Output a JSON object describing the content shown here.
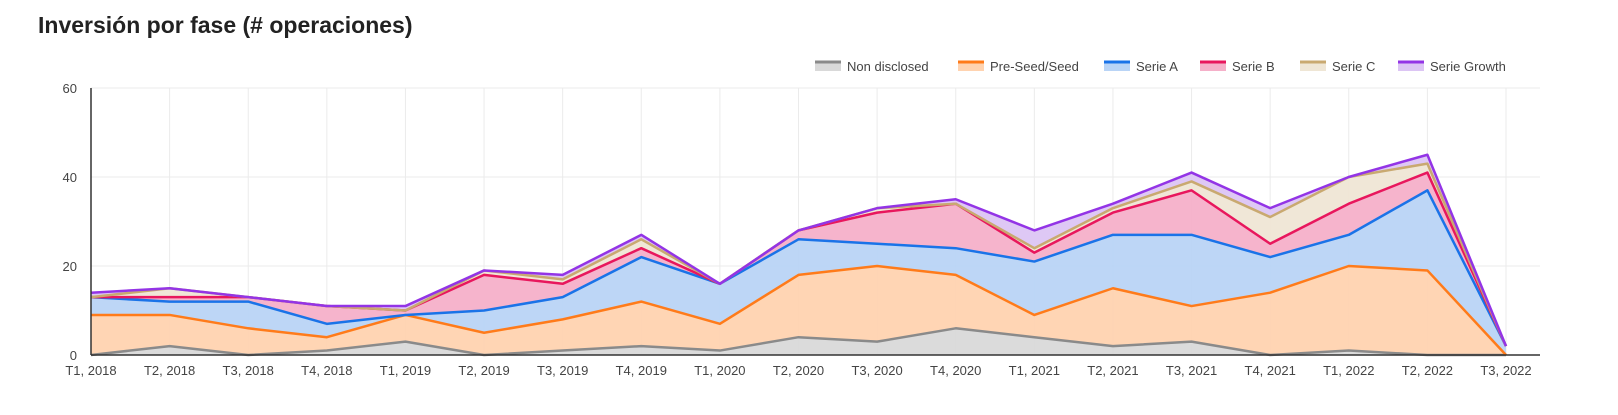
{
  "chart_data": {
    "type": "area",
    "stacked": true,
    "title": "Inversión por fase (# operaciones)",
    "xlabel": "",
    "ylabel": "",
    "ylim": [
      0,
      60
    ],
    "yticks": [
      "0",
      "20",
      "40",
      "60"
    ],
    "grid": true,
    "legend_position": "top-right",
    "categories": [
      "T1, 2018",
      "T2, 2018",
      "T3, 2018",
      "T4, 2018",
      "T1, 2019",
      "T2, 2019",
      "T3, 2019",
      "T4, 2019",
      "T1, 2020",
      "T2, 2020",
      "T3, 2020",
      "T4, 2020",
      "T1, 2021",
      "T2, 2021",
      "T3, 2021",
      "T4, 2021",
      "T1, 2022",
      "T2, 2022",
      "T3, 2022"
    ],
    "series": [
      {
        "name": "Non disclosed",
        "line": "#8a8a8a",
        "fill": "#d9d9d9",
        "values": [
          0,
          2,
          0,
          1,
          3,
          0,
          1,
          2,
          1,
          4,
          3,
          6,
          4,
          2,
          3,
          0,
          1,
          0,
          0
        ]
      },
      {
        "name": "Pre-Seed/Seed",
        "line": "#ff7b1a",
        "fill": "#ffd3b0",
        "values": [
          9,
          7,
          6,
          3,
          6,
          5,
          7,
          10,
          6,
          14,
          17,
          12,
          5,
          13,
          8,
          14,
          19,
          19,
          0
        ]
      },
      {
        "name": "Serie A",
        "line": "#1a73e8",
        "fill": "#b9d4f6",
        "values": [
          4,
          3,
          6,
          3,
          0,
          5,
          5,
          10,
          9,
          8,
          5,
          6,
          12,
          12,
          16,
          8,
          7,
          18,
          2
        ]
      },
      {
        "name": "Serie B",
        "line": "#e8175d",
        "fill": "#f5b0c9",
        "values": [
          0,
          1,
          1,
          4,
          1,
          8,
          3,
          2,
          0,
          2,
          7,
          10,
          2,
          5,
          10,
          3,
          7,
          4,
          0
        ]
      },
      {
        "name": "Serie C",
        "line": "#c9a970",
        "fill": "#efe6d5",
        "values": [
          0,
          2,
          0,
          0,
          0,
          1,
          1,
          2,
          0,
          0,
          1,
          0,
          1,
          1,
          2,
          6,
          6,
          2,
          0
        ]
      },
      {
        "name": "Serie Growth",
        "line": "#9334e6",
        "fill": "#dcc5f4",
        "values": [
          1,
          0,
          0,
          0,
          1,
          0,
          1,
          1,
          0,
          0,
          0,
          1,
          4,
          1,
          2,
          2,
          0,
          2,
          0
        ]
      }
    ]
  }
}
